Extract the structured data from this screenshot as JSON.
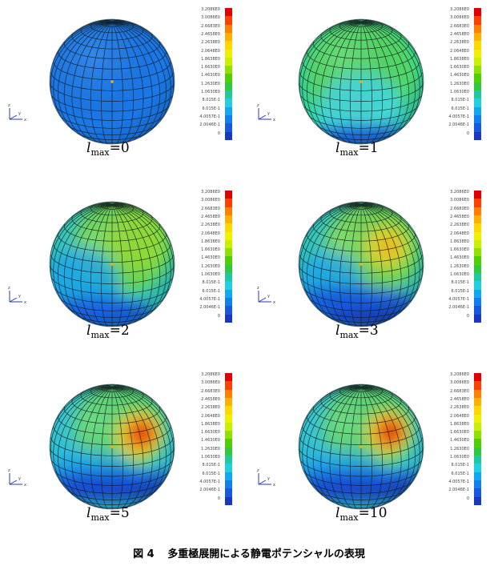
{
  "figure": {
    "number_label": "図 4",
    "title": "多重極展開による静電ポテンシャルの表現"
  },
  "colorbar": {
    "labels": [
      "3.2086E0",
      "3.0086E0",
      "2.6683E0",
      "2.4658E0",
      "2.2638E0",
      "2.0648E0",
      "1.8638E0",
      "1.6630E0",
      "1.4630E0",
      "1.2630E0",
      "1.0630E0",
      "8.015E-1",
      "6.015E-1",
      "4.0057E-1",
      "2.0046E-1",
      "0"
    ],
    "colors": [
      "#e00000",
      "#ff4000",
      "#ff8000",
      "#ffb000",
      "#ffd800",
      "#f0f000",
      "#c8f000",
      "#90e000",
      "#50d000",
      "#30c840",
      "#20c8a0",
      "#20d0e0",
      "#10a8f0",
      "#1080f0",
      "#1858e0",
      "#1838c0"
    ]
  },
  "axis_triad": {
    "x": "x",
    "y": "y",
    "z": "z"
  },
  "panels": [
    {
      "l_symbol": "l",
      "subscript": "max",
      "value_text": "=0",
      "lmax": 0
    },
    {
      "l_symbol": "l",
      "subscript": "max",
      "value_text": "=1",
      "lmax": 1
    },
    {
      "l_symbol": "l",
      "subscript": "max",
      "value_text": "=2",
      "lmax": 2
    },
    {
      "l_symbol": "l",
      "subscript": "max",
      "value_text": "=3",
      "lmax": 3
    },
    {
      "l_symbol": "l",
      "subscript": "max",
      "value_text": "=5",
      "lmax": 5
    },
    {
      "l_symbol": "l",
      "subscript": "max",
      "value_text": "=10",
      "lmax": 10
    }
  ]
}
